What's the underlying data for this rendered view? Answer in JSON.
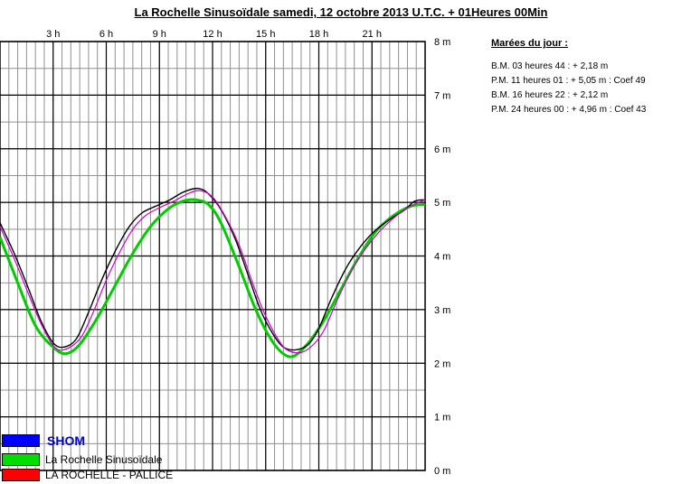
{
  "title": "La Rochelle Sinusoïdale samedi, 12 octobre 2013 U.T.C. + 01Heures 00Min",
  "tides": {
    "heading": "Marées du jour :",
    "lines": [
      "B.M. 03 heures 44 : +  2,18  m",
      "P.M. 11 heures 01 : +  5,05  m : Coef  49",
      "B.M. 16 heures 22 : +  2,12  m",
      "P.M. 24 heures 00 : +  4,96  m : Coef  43"
    ]
  },
  "legend": [
    {
      "label": "SHOM",
      "color": "#0000ff"
    },
    {
      "label": "La Rochelle Sinusoïdale",
      "color": "#00dd00"
    },
    {
      "label": "LA ROCHELLE - PALLICE",
      "color": "#ff0000"
    }
  ],
  "chart_data": {
    "type": "line",
    "title": "La Rochelle Sinusoïdale samedi, 12 octobre 2013 U.T.C. + 01Heures 00Min",
    "x_tick_labels": [
      "3  h",
      "6  h",
      "9  h",
      "12  h",
      "15  h",
      "18  h",
      "21  h"
    ],
    "x_ticks_hours": [
      3,
      6,
      9,
      12,
      15,
      18,
      21
    ],
    "y_tick_labels": [
      "0  m",
      "1  m",
      "2  m",
      "3  m",
      "4  m",
      "5  m",
      "6  m",
      "7  m",
      "8  m"
    ],
    "y_ticks": [
      0,
      1,
      2,
      3,
      4,
      5,
      6,
      7,
      8
    ],
    "xlim": [
      0,
      24
    ],
    "ylim": [
      0,
      8
    ],
    "grid": true,
    "series": [
      {
        "name": "La Rochelle Sinusoïdale",
        "color": "#00cc00",
        "x": [
          0,
          1,
          2,
          3,
          3.73,
          4.5,
          5.5,
          6.5,
          7.5,
          8.5,
          9.5,
          10.3,
          11.02,
          11.8,
          12.5,
          13.5,
          14.5,
          15.5,
          16.37,
          17.2,
          18.2,
          19.2,
          20.2,
          21.2,
          22.2,
          23.2,
          24
        ],
        "y": [
          4.35,
          3.5,
          2.7,
          2.3,
          2.18,
          2.35,
          2.85,
          3.45,
          4.05,
          4.55,
          4.88,
          5.02,
          5.05,
          4.95,
          4.6,
          3.8,
          2.95,
          2.35,
          2.12,
          2.3,
          2.75,
          3.35,
          3.95,
          4.45,
          4.75,
          4.93,
          4.96
        ]
      },
      {
        "name": "SHOM",
        "color": "#000000",
        "x": [
          0,
          0.8,
          1.6,
          2.3,
          3,
          3.6,
          4.3,
          5,
          5.8,
          6.6,
          7.3,
          8,
          8.8,
          9.6,
          10.4,
          11.2,
          11.8,
          12.5,
          13.3,
          14,
          14.7,
          15.4,
          16,
          16.7,
          17.4,
          18,
          18.7,
          19.5,
          20.3,
          21.1,
          22,
          22.8,
          23.4,
          24
        ],
        "y": [
          4.62,
          4.05,
          3.4,
          2.8,
          2.38,
          2.3,
          2.45,
          2.95,
          3.6,
          4.15,
          4.55,
          4.8,
          4.93,
          5.05,
          5.2,
          5.26,
          5.15,
          4.85,
          4.3,
          3.65,
          3.0,
          2.55,
          2.3,
          2.25,
          2.35,
          2.65,
          3.2,
          3.75,
          4.15,
          4.45,
          4.68,
          4.85,
          5.02,
          5.05
        ]
      },
      {
        "name": "LA ROCHELLE - PALLICE",
        "color": "#cc00cc",
        "x": [
          0,
          0.8,
          1.6,
          2.3,
          3,
          3.6,
          4.5,
          5.2,
          6,
          6.8,
          7.5,
          8.2,
          9,
          9.8,
          10.6,
          11.3,
          12,
          12.7,
          13.5,
          14.2,
          14.9,
          15.6,
          16.2,
          17,
          17.7,
          18.3,
          19,
          19.8,
          20.6,
          21.4,
          22.2,
          23,
          24
        ],
        "y": [
          4.55,
          3.95,
          3.3,
          2.75,
          2.33,
          2.25,
          2.45,
          2.9,
          3.55,
          4.1,
          4.5,
          4.75,
          4.9,
          5.02,
          5.16,
          5.22,
          5.1,
          4.75,
          4.2,
          3.55,
          2.95,
          2.5,
          2.25,
          2.2,
          2.35,
          2.62,
          3.15,
          3.7,
          4.12,
          4.45,
          4.7,
          4.9,
          5.05
        ]
      }
    ]
  }
}
